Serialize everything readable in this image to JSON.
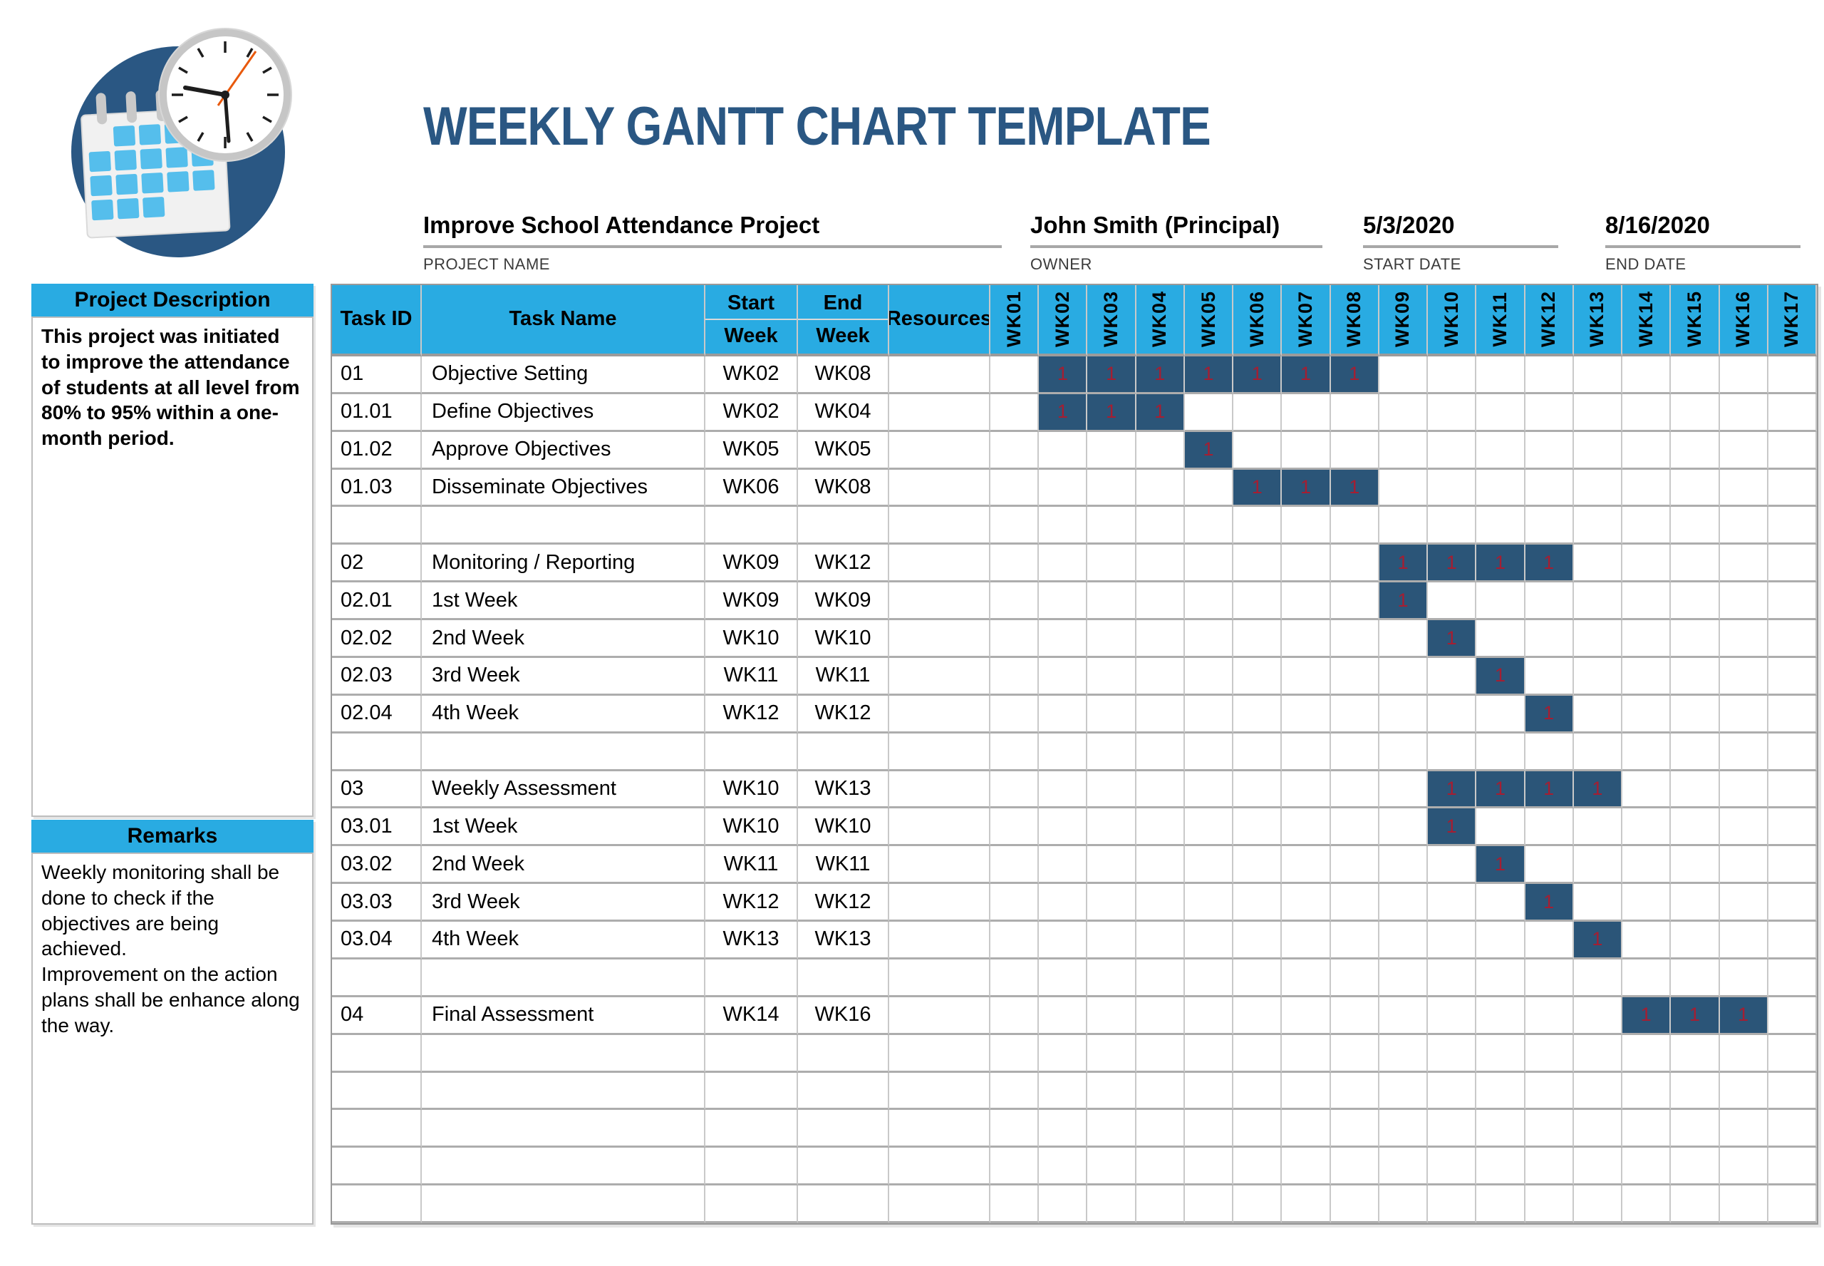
{
  "title": "WEEKLY GANTT CHART TEMPLATE",
  "project": {
    "name": "Improve School Attendance Project",
    "name_label": "PROJECT NAME",
    "owner": "John Smith (Principal)",
    "owner_label": "OWNER",
    "start_date": "5/3/2020",
    "start_date_label": "START DATE",
    "end_date": "8/16/2020",
    "end_date_label": "END DATE"
  },
  "sidebar": {
    "description_title": "Project Description",
    "description_text": "This project was initiated to improve the attendance of students at all level from 80% to 95% within a one-month period.",
    "remarks_title": "Remarks",
    "remarks_text": "Weekly monitoring shall be done to check if the objectives are being achieved.\nImprovement on the action plans shall be enhance along the way."
  },
  "table": {
    "headers": {
      "task_id": "Task ID",
      "task_name": "Task Name",
      "start_week": "Start\nWeek",
      "end_week": "End\nWeek",
      "resources": "Resources"
    },
    "week_headers": [
      "WK01",
      "WK02",
      "WK03",
      "WK04",
      "WK05",
      "WK06",
      "WK07",
      "WK08",
      "WK09",
      "WK10",
      "WK11",
      "WK12",
      "WK13",
      "WK14",
      "WK15",
      "WK16",
      "WK17"
    ],
    "bar_value": "1",
    "rows": [
      {
        "id": "01",
        "name": "Objective Setting",
        "start": "WK02",
        "end": "WK08",
        "resources": "",
        "bars": [
          2,
          3,
          4,
          5,
          6,
          7,
          8
        ]
      },
      {
        "id": "01.01",
        "name": "Define Objectives",
        "start": "WK02",
        "end": "WK04",
        "resources": "",
        "bars": [
          2,
          3,
          4
        ]
      },
      {
        "id": "01.02",
        "name": "Approve Objectives",
        "start": "WK05",
        "end": "WK05",
        "resources": "",
        "bars": [
          5
        ]
      },
      {
        "id": "01.03",
        "name": "Disseminate Objectives",
        "start": "WK06",
        "end": "WK08",
        "resources": "",
        "bars": [
          6,
          7,
          8
        ]
      },
      {
        "id": "",
        "name": "",
        "start": "",
        "end": "",
        "resources": "",
        "bars": []
      },
      {
        "id": "02",
        "name": "Monitoring / Reporting",
        "start": "WK09",
        "end": "WK12",
        "resources": "",
        "bars": [
          9,
          10,
          11,
          12
        ]
      },
      {
        "id": "02.01",
        "name": "1st Week",
        "start": "WK09",
        "end": "WK09",
        "resources": "",
        "bars": [
          9
        ]
      },
      {
        "id": "02.02",
        "name": "2nd Week",
        "start": "WK10",
        "end": "WK10",
        "resources": "",
        "bars": [
          10
        ]
      },
      {
        "id": "02.03",
        "name": "3rd Week",
        "start": "WK11",
        "end": "WK11",
        "resources": "",
        "bars": [
          11
        ]
      },
      {
        "id": "02.04",
        "name": "4th Week",
        "start": "WK12",
        "end": "WK12",
        "resources": "",
        "bars": [
          12
        ]
      },
      {
        "id": "",
        "name": "",
        "start": "",
        "end": "",
        "resources": "",
        "bars": []
      },
      {
        "id": "03",
        "name": "Weekly Assessment",
        "start": "WK10",
        "end": "WK13",
        "resources": "",
        "bars": [
          10,
          11,
          12,
          13
        ]
      },
      {
        "id": "03.01",
        "name": "1st Week",
        "start": "WK10",
        "end": "WK10",
        "resources": "",
        "bars": [
          10
        ]
      },
      {
        "id": "03.02",
        "name": "2nd Week",
        "start": "WK11",
        "end": "WK11",
        "resources": "",
        "bars": [
          11
        ]
      },
      {
        "id": "03.03",
        "name": "3rd Week",
        "start": "WK12",
        "end": "WK12",
        "resources": "",
        "bars": [
          12
        ]
      },
      {
        "id": "03.04",
        "name": "4th Week",
        "start": "WK13",
        "end": "WK13",
        "resources": "",
        "bars": [
          13
        ]
      },
      {
        "id": "",
        "name": "",
        "start": "",
        "end": "",
        "resources": "",
        "bars": []
      },
      {
        "id": "04",
        "name": "Final Assessment",
        "start": "WK14",
        "end": "WK16",
        "resources": "",
        "bars": [
          14,
          15,
          16
        ]
      },
      {
        "id": "",
        "name": "",
        "start": "",
        "end": "",
        "resources": "",
        "bars": []
      },
      {
        "id": "",
        "name": "",
        "start": "",
        "end": "",
        "resources": "",
        "bars": []
      },
      {
        "id": "",
        "name": "",
        "start": "",
        "end": "",
        "resources": "",
        "bars": []
      },
      {
        "id": "",
        "name": "",
        "start": "",
        "end": "",
        "resources": "",
        "bars": []
      },
      {
        "id": "",
        "name": "",
        "start": "",
        "end": "",
        "resources": "",
        "bars": []
      }
    ]
  },
  "colors": {
    "header_blue": "#29ABE2",
    "bar_fill_navy": "#2B5578",
    "bar_value_red": "#A51E32",
    "title_blue": "#2A5783"
  },
  "chart_data": {
    "type": "table",
    "subtype": "gantt",
    "title": "WEEKLY GANTT CHART TEMPLATE",
    "project_name": "Improve School Attendance Project",
    "owner": "John Smith (Principal)",
    "start_date": "5/3/2020",
    "end_date": "8/16/2020",
    "x_categories": [
      "WK01",
      "WK02",
      "WK03",
      "WK04",
      "WK05",
      "WK06",
      "WK07",
      "WK08",
      "WK09",
      "WK10",
      "WK11",
      "WK12",
      "WK13",
      "WK14",
      "WK15",
      "WK16",
      "WK17"
    ],
    "cell_value_in_active_weeks": "1",
    "tasks": [
      {
        "task_id": "01",
        "task_name": "Objective Setting",
        "start_week": "WK02",
        "end_week": "WK08",
        "active_weeks": [
          2,
          3,
          4,
          5,
          6,
          7,
          8
        ]
      },
      {
        "task_id": "01.01",
        "task_name": "Define Objectives",
        "start_week": "WK02",
        "end_week": "WK04",
        "active_weeks": [
          2,
          3,
          4
        ]
      },
      {
        "task_id": "01.02",
        "task_name": "Approve Objectives",
        "start_week": "WK05",
        "end_week": "WK05",
        "active_weeks": [
          5
        ]
      },
      {
        "task_id": "01.03",
        "task_name": "Disseminate Objectives",
        "start_week": "WK06",
        "end_week": "WK08",
        "active_weeks": [
          6,
          7,
          8
        ]
      },
      {
        "task_id": "02",
        "task_name": "Monitoring / Reporting",
        "start_week": "WK09",
        "end_week": "WK12",
        "active_weeks": [
          9,
          10,
          11,
          12
        ]
      },
      {
        "task_id": "02.01",
        "task_name": "1st Week",
        "start_week": "WK09",
        "end_week": "WK09",
        "active_weeks": [
          9
        ]
      },
      {
        "task_id": "02.02",
        "task_name": "2nd Week",
        "start_week": "WK10",
        "end_week": "WK10",
        "active_weeks": [
          10
        ]
      },
      {
        "task_id": "02.03",
        "task_name": "3rd Week",
        "start_week": "WK11",
        "end_week": "WK11",
        "active_weeks": [
          11
        ]
      },
      {
        "task_id": "02.04",
        "task_name": "4th Week",
        "start_week": "WK12",
        "end_week": "WK12",
        "active_weeks": [
          12
        ]
      },
      {
        "task_id": "03",
        "task_name": "Weekly Assessment",
        "start_week": "WK10",
        "end_week": "WK13",
        "active_weeks": [
          10,
          11,
          12,
          13
        ]
      },
      {
        "task_id": "03.01",
        "task_name": "1st Week",
        "start_week": "WK10",
        "end_week": "WK10",
        "active_weeks": [
          10
        ]
      },
      {
        "task_id": "03.02",
        "task_name": "2nd Week",
        "start_week": "WK11",
        "end_week": "WK11",
        "active_weeks": [
          11
        ]
      },
      {
        "task_id": "03.03",
        "task_name": "3rd Week",
        "start_week": "WK12",
        "end_week": "WK12",
        "active_weeks": [
          12
        ]
      },
      {
        "task_id": "03.04",
        "task_name": "4th Week",
        "start_week": "WK13",
        "end_week": "WK13",
        "active_weeks": [
          13
        ]
      },
      {
        "task_id": "04",
        "task_name": "Final Assessment",
        "start_week": "WK14",
        "end_week": "WK16",
        "active_weeks": [
          14,
          15,
          16
        ]
      }
    ]
  }
}
